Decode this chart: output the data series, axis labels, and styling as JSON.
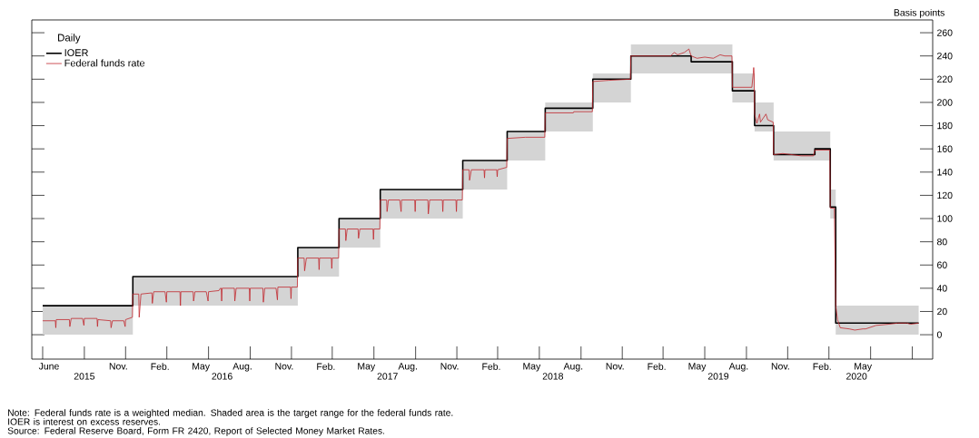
{
  "chart_data": {
    "type": "line",
    "ylabel": "Basis points",
    "legend_title": "Daily",
    "legend": "top left",
    "grid": false,
    "marker": "none",
    "line_style": "solid",
    "xlim": [
      "2015-05-08",
      "2020-10-16"
    ],
    "ylim": [
      -21,
      271
    ],
    "yticks": [
      0,
      20,
      40,
      60,
      80,
      100,
      120,
      140,
      160,
      180,
      200,
      220,
      240,
      260
    ],
    "xticks": [
      {
        "value": "2015-06-01",
        "label": null
      },
      {
        "value": "2015-09-01",
        "label": null
      },
      {
        "value": "2015-12-01",
        "label": null
      },
      {
        "value": "2016-03-01",
        "label": null
      },
      {
        "value": "2016-06-01",
        "label": null
      },
      {
        "value": "2016-09-01",
        "label": null
      },
      {
        "value": "2016-12-01",
        "label": null
      },
      {
        "value": "2017-03-01",
        "label": null
      },
      {
        "value": "2017-06-01",
        "label": null
      },
      {
        "value": "2017-09-01",
        "label": null
      },
      {
        "value": "2017-12-01",
        "label": null
      },
      {
        "value": "2018-03-01",
        "label": null
      },
      {
        "value": "2018-06-01",
        "label": null
      },
      {
        "value": "2018-09-01",
        "label": null
      },
      {
        "value": "2018-12-01",
        "label": null
      },
      {
        "value": "2019-03-01",
        "label": null
      },
      {
        "value": "2019-06-01",
        "label": null
      },
      {
        "value": "2019-09-01",
        "label": null
      },
      {
        "value": "2019-12-01",
        "label": null
      },
      {
        "value": "2020-03-01",
        "label": null
      },
      {
        "value": "2020-06-01",
        "label": null
      },
      {
        "value": "2020-09-01",
        "label": null
      },
      {
        "value": "2015-06-15",
        "label": "June"
      },
      {
        "value": "2015-11-15",
        "label": "Nov."
      },
      {
        "value": "2016-02-15",
        "label": "Feb."
      },
      {
        "value": "2016-05-15",
        "label": "May"
      },
      {
        "value": "2016-08-15",
        "label": "Aug."
      },
      {
        "value": "2016-11-15",
        "label": "Nov."
      },
      {
        "value": "2017-02-15",
        "label": "Feb."
      },
      {
        "value": "2017-05-15",
        "label": "May"
      },
      {
        "value": "2017-08-15",
        "label": "Aug."
      },
      {
        "value": "2017-11-15",
        "label": "Nov."
      },
      {
        "value": "2018-02-15",
        "label": "Feb."
      },
      {
        "value": "2018-05-15",
        "label": "May"
      },
      {
        "value": "2018-08-15",
        "label": "Aug."
      },
      {
        "value": "2018-11-15",
        "label": "Nov."
      },
      {
        "value": "2019-02-15",
        "label": "Feb."
      },
      {
        "value": "2019-05-15",
        "label": "May"
      },
      {
        "value": "2019-08-15",
        "label": "Aug."
      },
      {
        "value": "2019-11-15",
        "label": "Nov."
      },
      {
        "value": "2020-02-15",
        "label": "Feb."
      },
      {
        "value": "2020-05-15",
        "label": "May"
      }
    ],
    "x2lim": [
      "2015-05-08",
      "2020-10-16"
    ],
    "x2ticks": [
      {
        "value": "2015-09",
        "label": "2015"
      },
      {
        "value": "2016-07",
        "label": "2016"
      },
      {
        "value": "2017-07",
        "label": "2017"
      },
      {
        "value": "2018-07",
        "label": "2018"
      },
      {
        "value": "2019-07",
        "label": "2019"
      },
      {
        "value": "2020-05",
        "label": "2020"
      }
    ],
    "series": [
      {
        "type": "step",
        "name": "IOER",
        "color": "#000000",
        "x": [
          "2015-06-01",
          "2015-12-17",
          "2016-12-15",
          "2017-03-16",
          "2017-06-15",
          "2017-12-14",
          "2018-03-22",
          "2018-06-14",
          "2018-09-27",
          "2018-12-20",
          "2019-05-02",
          "2019-08-01",
          "2019-09-19",
          "2019-10-31",
          "2020-01-30",
          "2020-03-04",
          "2020-03-16",
          "2020-09-15"
        ],
        "values": [
          25,
          50,
          75,
          100,
          125,
          150,
          175,
          195,
          220,
          240,
          235,
          210,
          180,
          155,
          160,
          110,
          10,
          10
        ],
        "lower": [
          0,
          25,
          50,
          75,
          100,
          125,
          150,
          175,
          200,
          225,
          225,
          200,
          175,
          150,
          150,
          100,
          0,
          0
        ],
        "upper": [
          25,
          50,
          75,
          100,
          125,
          150,
          175,
          200,
          225,
          250,
          250,
          225,
          200,
          175,
          175,
          125,
          25,
          25
        ]
      },
      {
        "name": "Federal funds rate",
        "color": "#c0272d",
        "x": [
          "2015-06-01",
          "2015-06-29",
          "2015-06-30",
          "2015-07-01",
          "2015-07-30",
          "2015-07-31",
          "2015-08-03",
          "2015-08-28",
          "2015-08-31",
          "2015-09-01",
          "2015-09-29",
          "2015-09-30",
          "2015-10-01",
          "2015-10-29",
          "2015-10-30",
          "2015-11-02",
          "2015-11-27",
          "2015-11-30",
          "2015-12-01",
          "2015-12-16",
          "2015-12-17",
          "2015-12-30",
          "2015-12-31",
          "2016-01-04",
          "2016-01-28",
          "2016-01-29",
          "2016-02-01",
          "2016-02-26",
          "2016-02-29",
          "2016-03-01",
          "2016-03-30",
          "2016-03-31",
          "2016-04-01",
          "2016-04-28",
          "2016-04-29",
          "2016-05-02",
          "2016-05-27",
          "2016-05-31",
          "2016-06-01",
          "2016-06-24",
          "2016-06-27",
          "2016-06-29",
          "2016-06-30",
          "2016-07-01",
          "2016-07-28",
          "2016-07-29",
          "2016-08-01",
          "2016-08-30",
          "2016-08-31",
          "2016-09-01",
          "2016-09-29",
          "2016-09-30",
          "2016-10-03",
          "2016-10-28",
          "2016-10-31",
          "2016-11-01",
          "2016-11-29",
          "2016-11-30",
          "2016-12-01",
          "2016-12-14",
          "2016-12-15",
          "2016-12-29",
          "2016-12-30",
          "2017-01-03",
          "2017-01-30",
          "2017-01-31",
          "2017-02-01",
          "2017-02-27",
          "2017-02-28",
          "2017-03-01",
          "2017-03-15",
          "2017-03-16",
          "2017-03-30",
          "2017-03-31",
          "2017-04-03",
          "2017-04-27",
          "2017-04-28",
          "2017-05-01",
          "2017-05-30",
          "2017-05-31",
          "2017-06-01",
          "2017-06-14",
          "2017-06-15",
          "2017-06-29",
          "2017-06-30",
          "2017-07-03",
          "2017-07-28",
          "2017-07-31",
          "2017-08-01",
          "2017-08-30",
          "2017-08-31",
          "2017-09-01",
          "2017-09-28",
          "2017-09-29",
          "2017-10-02",
          "2017-10-30",
          "2017-10-31",
          "2017-11-01",
          "2017-11-29",
          "2017-11-30",
          "2017-12-01",
          "2017-12-13",
          "2017-12-14",
          "2017-12-28",
          "2017-12-29",
          "2018-01-02",
          "2018-01-30",
          "2018-01-31",
          "2018-02-01",
          "2018-02-27",
          "2018-02-28",
          "2018-03-01",
          "2018-03-20",
          "2018-03-21",
          "2018-03-22",
          "2018-05-01",
          "2018-06-13",
          "2018-06-14",
          "2018-08-15",
          "2018-08-16",
          "2018-09-26",
          "2018-09-27",
          "2018-11-01",
          "2018-12-19",
          "2018-12-20",
          "2019-03-19",
          "2019-03-20",
          "2019-03-26",
          "2019-04-02",
          "2019-04-17",
          "2019-04-27",
          "2019-05-02",
          "2019-05-15",
          "2019-06-01",
          "2019-06-20",
          "2019-07-05",
          "2019-07-15",
          "2019-07-31",
          "2019-08-01",
          "2019-09-13",
          "2019-09-16",
          "2019-09-17",
          "2019-09-18",
          "2019-09-19",
          "2019-09-24",
          "2019-09-30",
          "2019-10-02",
          "2019-10-14",
          "2019-10-18",
          "2019-10-30",
          "2019-10-31",
          "2019-11-20",
          "2019-12-31",
          "2020-01-27",
          "2020-01-30",
          "2020-03-03",
          "2020-03-04",
          "2020-03-13",
          "2020-03-16",
          "2020-03-20",
          "2020-03-26",
          "2020-04-15",
          "2020-04-27",
          "2020-05-15",
          "2020-05-21",
          "2020-06-13",
          "2020-07-10",
          "2020-07-31",
          "2020-08-20",
          "2020-08-28",
          "2020-09-15"
        ],
        "values": [
          12,
          12,
          6,
          13,
          13,
          7,
          14,
          14,
          8,
          14,
          14,
          7,
          13,
          12,
          6,
          12,
          12,
          7,
          13,
          15,
          35,
          35,
          15,
          35,
          36,
          27,
          37,
          37,
          28,
          37,
          37,
          25,
          37,
          37,
          29,
          37,
          37,
          29,
          37,
          38,
          40,
          40,
          29,
          40,
          40,
          29,
          40,
          40,
          29,
          40,
          40,
          28,
          40,
          40,
          30,
          41,
          41,
          31,
          41,
          41,
          66,
          66,
          55,
          66,
          66,
          56,
          66,
          66,
          57,
          66,
          66,
          91,
          91,
          81,
          91,
          91,
          83,
          91,
          91,
          82,
          91,
          91,
          116,
          116,
          106,
          116,
          116,
          106,
          116,
          116,
          106,
          116,
          116,
          104,
          116,
          116,
          106,
          116,
          116,
          106,
          116,
          116,
          142,
          142,
          133,
          142,
          142,
          135,
          142,
          142,
          136,
          142,
          144,
          144,
          169,
          170,
          170,
          191,
          191,
          192,
          192,
          218,
          219,
          220,
          240,
          240,
          241,
          243,
          241,
          243,
          246,
          240,
          238,
          239,
          238,
          241,
          240,
          240,
          213,
          213,
          225,
          230,
          225,
          190,
          182,
          190,
          183,
          190,
          185,
          183,
          155,
          156,
          154,
          154,
          159,
          159,
          109,
          109,
          25,
          13,
          6,
          5,
          4,
          5,
          5,
          8,
          9,
          10,
          10,
          9,
          10
        ]
      }
    ],
    "annotations": [
      "Note: Federal funds rate is a weighted median. Shaded area is the target range for the federal funds rate. IOER is interest on excess reserves.",
      "Source: Federal Reserve Board, Form FR 2420, Report of Selected Money Market Rates."
    ]
  }
}
